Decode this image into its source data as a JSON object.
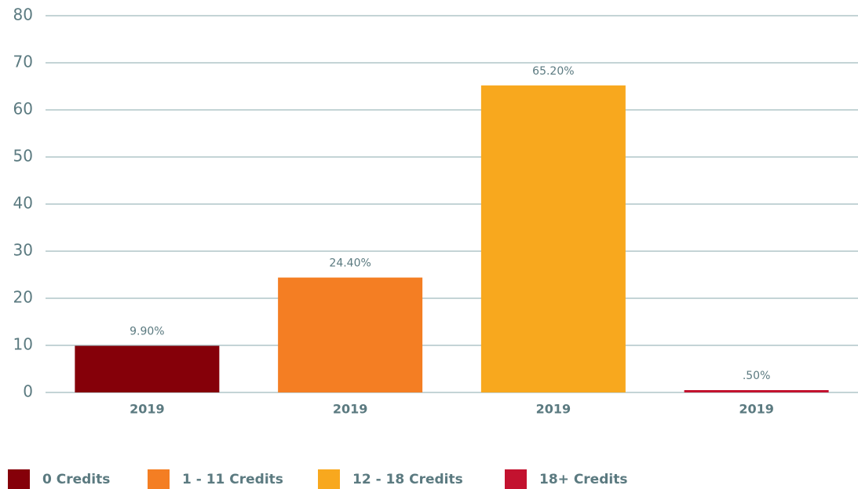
{
  "chart_data": {
    "type": "bar",
    "categories": [
      "2019",
      "2019",
      "2019",
      "2019"
    ],
    "series": [
      {
        "name": "0 Credits",
        "color": "#850009",
        "values": [
          9.9,
          null,
          null,
          null
        ],
        "value_labels": [
          "9.90%",
          null,
          null,
          null
        ]
      },
      {
        "name": "1 - 11 Credits",
        "color": "#f47e23",
        "values": [
          null,
          24.4,
          null,
          null
        ],
        "value_labels": [
          null,
          "24.40%",
          null,
          null
        ]
      },
      {
        "name": "12 - 18 Credits",
        "color": "#f8a81e",
        "values": [
          null,
          null,
          65.2,
          null
        ],
        "value_labels": [
          null,
          null,
          "65.20%",
          null
        ]
      },
      {
        "name": "18+ Credits",
        "color": "#c3122f",
        "values": [
          null,
          null,
          null,
          0.5
        ],
        "value_labels": [
          null,
          null,
          null,
          ".50%"
        ]
      }
    ],
    "ylim": [
      0,
      80
    ],
    "yticks": [
      0,
      10,
      20,
      30,
      40,
      50,
      60,
      70,
      80
    ],
    "grid": true,
    "legend": "bottom"
  }
}
